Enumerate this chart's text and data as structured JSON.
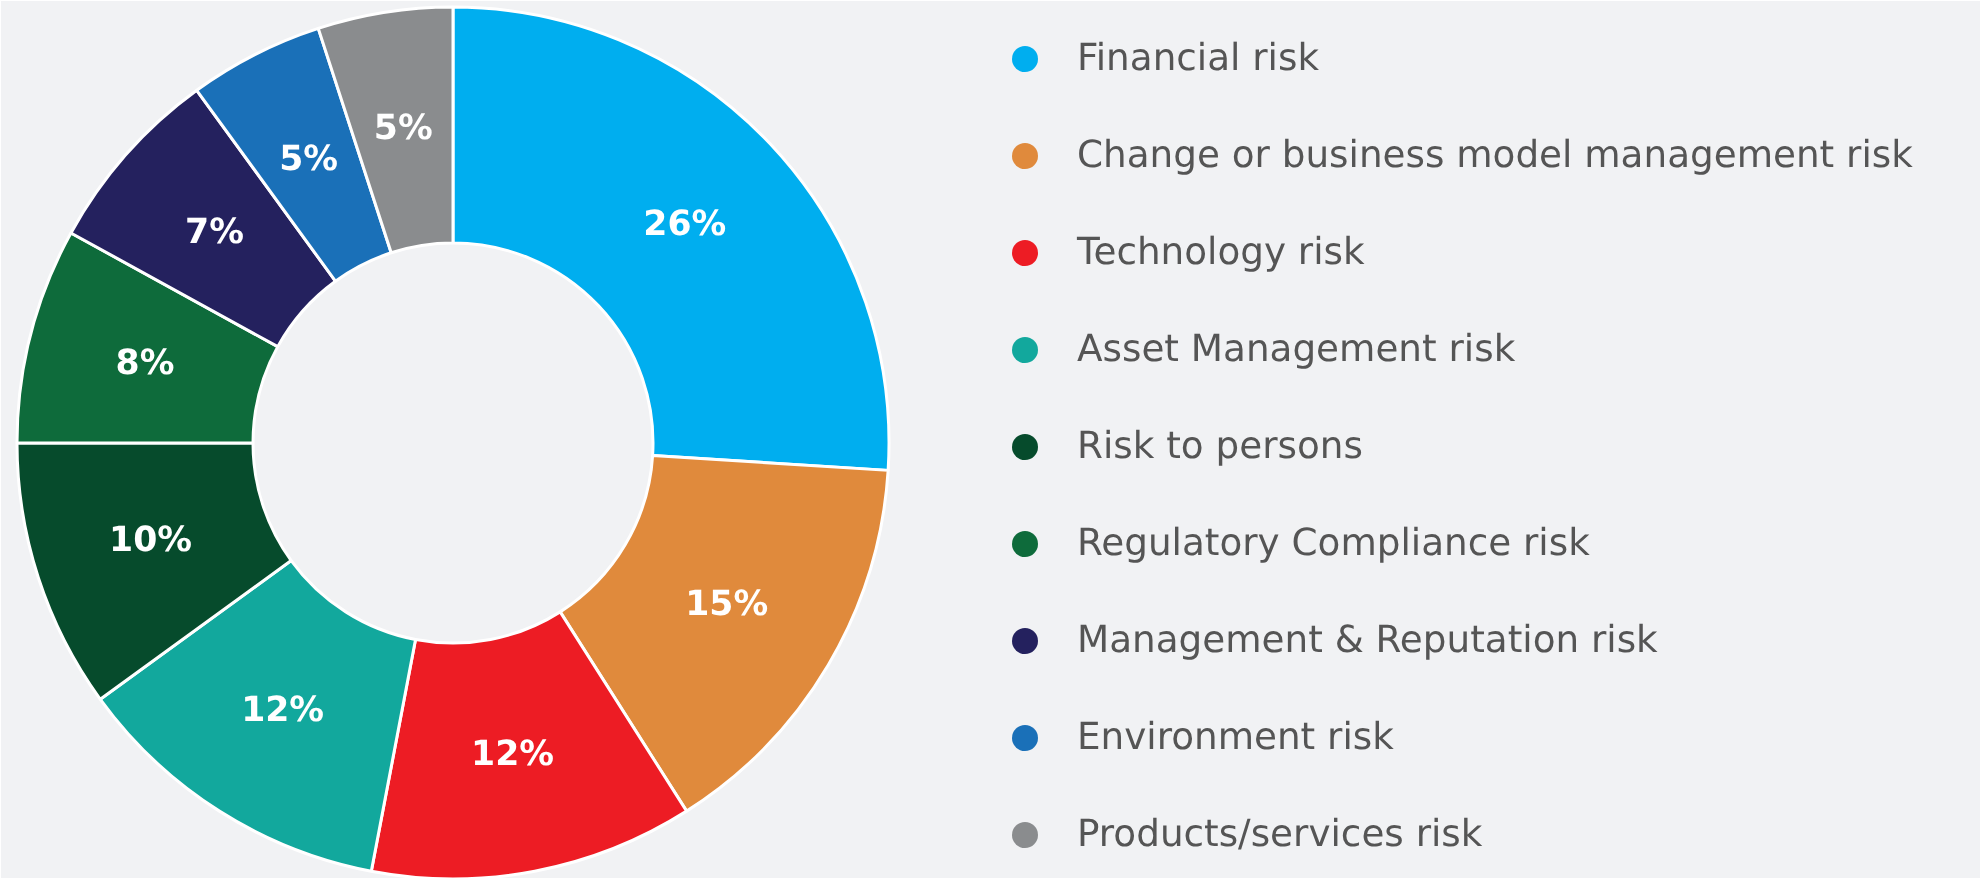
{
  "chart_data": {
    "type": "donut",
    "categories": [
      "Financial risk",
      "Change or business model management risk",
      "Technology risk",
      "Asset Management risk",
      "Risk to persons",
      "Regulatory Compliance risk",
      "Management & Reputation risk",
      "Environment risk",
      "Products/services risk"
    ],
    "values": [
      26,
      15,
      12,
      12,
      10,
      8,
      7,
      5,
      5
    ],
    "value_labels": [
      "26%",
      "15%",
      "12%",
      "12%",
      "10%",
      "8%",
      "7%",
      "5%",
      "5%"
    ],
    "colors": [
      "#00aeef",
      "#e08a3c",
      "#ed1c24",
      "#12a89d",
      "#064b2c",
      "#0e6b3b",
      "#24215e",
      "#1a70b8",
      "#8a8c8e"
    ],
    "legend": "right"
  }
}
